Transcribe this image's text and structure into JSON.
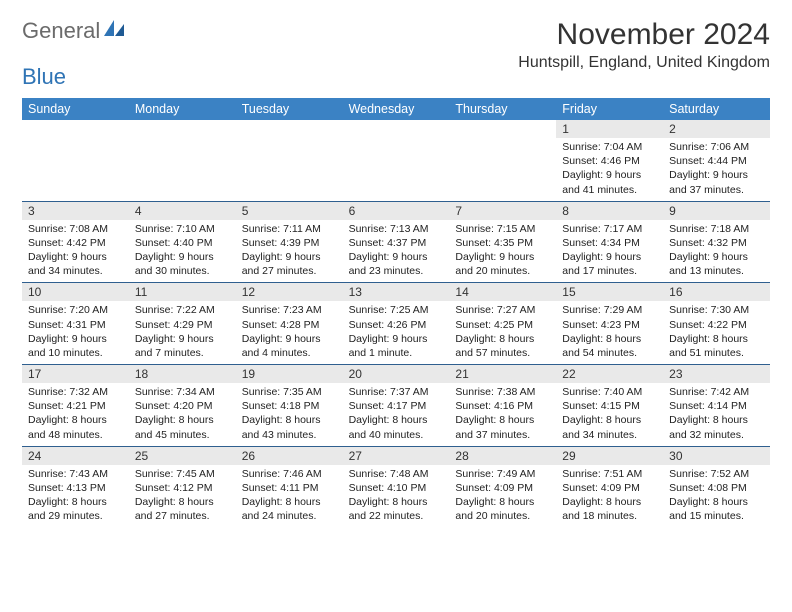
{
  "logo": {
    "part1": "General",
    "part2": "Blue"
  },
  "title": "November 2024",
  "location": "Huntspill, England, United Kingdom",
  "colors": {
    "header_bg": "#3b82c4",
    "header_text": "#ffffff",
    "daynum_bg": "#e9e9e9",
    "week_border": "#2f5f8f",
    "logo_gray": "#6b6b6b",
    "logo_blue": "#2f74b5"
  },
  "day_names": [
    "Sunday",
    "Monday",
    "Tuesday",
    "Wednesday",
    "Thursday",
    "Friday",
    "Saturday"
  ],
  "weeks": [
    [
      {
        "empty": true
      },
      {
        "empty": true
      },
      {
        "empty": true
      },
      {
        "empty": true
      },
      {
        "empty": true
      },
      {
        "day": "1",
        "sunrise": "Sunrise: 7:04 AM",
        "sunset": "Sunset: 4:46 PM",
        "daylight1": "Daylight: 9 hours",
        "daylight2": "and 41 minutes."
      },
      {
        "day": "2",
        "sunrise": "Sunrise: 7:06 AM",
        "sunset": "Sunset: 4:44 PM",
        "daylight1": "Daylight: 9 hours",
        "daylight2": "and 37 minutes."
      }
    ],
    [
      {
        "day": "3",
        "sunrise": "Sunrise: 7:08 AM",
        "sunset": "Sunset: 4:42 PM",
        "daylight1": "Daylight: 9 hours",
        "daylight2": "and 34 minutes."
      },
      {
        "day": "4",
        "sunrise": "Sunrise: 7:10 AM",
        "sunset": "Sunset: 4:40 PM",
        "daylight1": "Daylight: 9 hours",
        "daylight2": "and 30 minutes."
      },
      {
        "day": "5",
        "sunrise": "Sunrise: 7:11 AM",
        "sunset": "Sunset: 4:39 PM",
        "daylight1": "Daylight: 9 hours",
        "daylight2": "and 27 minutes."
      },
      {
        "day": "6",
        "sunrise": "Sunrise: 7:13 AM",
        "sunset": "Sunset: 4:37 PM",
        "daylight1": "Daylight: 9 hours",
        "daylight2": "and 23 minutes."
      },
      {
        "day": "7",
        "sunrise": "Sunrise: 7:15 AM",
        "sunset": "Sunset: 4:35 PM",
        "daylight1": "Daylight: 9 hours",
        "daylight2": "and 20 minutes."
      },
      {
        "day": "8",
        "sunrise": "Sunrise: 7:17 AM",
        "sunset": "Sunset: 4:34 PM",
        "daylight1": "Daylight: 9 hours",
        "daylight2": "and 17 minutes."
      },
      {
        "day": "9",
        "sunrise": "Sunrise: 7:18 AM",
        "sunset": "Sunset: 4:32 PM",
        "daylight1": "Daylight: 9 hours",
        "daylight2": "and 13 minutes."
      }
    ],
    [
      {
        "day": "10",
        "sunrise": "Sunrise: 7:20 AM",
        "sunset": "Sunset: 4:31 PM",
        "daylight1": "Daylight: 9 hours",
        "daylight2": "and 10 minutes."
      },
      {
        "day": "11",
        "sunrise": "Sunrise: 7:22 AM",
        "sunset": "Sunset: 4:29 PM",
        "daylight1": "Daylight: 9 hours",
        "daylight2": "and 7 minutes."
      },
      {
        "day": "12",
        "sunrise": "Sunrise: 7:23 AM",
        "sunset": "Sunset: 4:28 PM",
        "daylight1": "Daylight: 9 hours",
        "daylight2": "and 4 minutes."
      },
      {
        "day": "13",
        "sunrise": "Sunrise: 7:25 AM",
        "sunset": "Sunset: 4:26 PM",
        "daylight1": "Daylight: 9 hours",
        "daylight2": "and 1 minute."
      },
      {
        "day": "14",
        "sunrise": "Sunrise: 7:27 AM",
        "sunset": "Sunset: 4:25 PM",
        "daylight1": "Daylight: 8 hours",
        "daylight2": "and 57 minutes."
      },
      {
        "day": "15",
        "sunrise": "Sunrise: 7:29 AM",
        "sunset": "Sunset: 4:23 PM",
        "daylight1": "Daylight: 8 hours",
        "daylight2": "and 54 minutes."
      },
      {
        "day": "16",
        "sunrise": "Sunrise: 7:30 AM",
        "sunset": "Sunset: 4:22 PM",
        "daylight1": "Daylight: 8 hours",
        "daylight2": "and 51 minutes."
      }
    ],
    [
      {
        "day": "17",
        "sunrise": "Sunrise: 7:32 AM",
        "sunset": "Sunset: 4:21 PM",
        "daylight1": "Daylight: 8 hours",
        "daylight2": "and 48 minutes."
      },
      {
        "day": "18",
        "sunrise": "Sunrise: 7:34 AM",
        "sunset": "Sunset: 4:20 PM",
        "daylight1": "Daylight: 8 hours",
        "daylight2": "and 45 minutes."
      },
      {
        "day": "19",
        "sunrise": "Sunrise: 7:35 AM",
        "sunset": "Sunset: 4:18 PM",
        "daylight1": "Daylight: 8 hours",
        "daylight2": "and 43 minutes."
      },
      {
        "day": "20",
        "sunrise": "Sunrise: 7:37 AM",
        "sunset": "Sunset: 4:17 PM",
        "daylight1": "Daylight: 8 hours",
        "daylight2": "and 40 minutes."
      },
      {
        "day": "21",
        "sunrise": "Sunrise: 7:38 AM",
        "sunset": "Sunset: 4:16 PM",
        "daylight1": "Daylight: 8 hours",
        "daylight2": "and 37 minutes."
      },
      {
        "day": "22",
        "sunrise": "Sunrise: 7:40 AM",
        "sunset": "Sunset: 4:15 PM",
        "daylight1": "Daylight: 8 hours",
        "daylight2": "and 34 minutes."
      },
      {
        "day": "23",
        "sunrise": "Sunrise: 7:42 AM",
        "sunset": "Sunset: 4:14 PM",
        "daylight1": "Daylight: 8 hours",
        "daylight2": "and 32 minutes."
      }
    ],
    [
      {
        "day": "24",
        "sunrise": "Sunrise: 7:43 AM",
        "sunset": "Sunset: 4:13 PM",
        "daylight1": "Daylight: 8 hours",
        "daylight2": "and 29 minutes."
      },
      {
        "day": "25",
        "sunrise": "Sunrise: 7:45 AM",
        "sunset": "Sunset: 4:12 PM",
        "daylight1": "Daylight: 8 hours",
        "daylight2": "and 27 minutes."
      },
      {
        "day": "26",
        "sunrise": "Sunrise: 7:46 AM",
        "sunset": "Sunset: 4:11 PM",
        "daylight1": "Daylight: 8 hours",
        "daylight2": "and 24 minutes."
      },
      {
        "day": "27",
        "sunrise": "Sunrise: 7:48 AM",
        "sunset": "Sunset: 4:10 PM",
        "daylight1": "Daylight: 8 hours",
        "daylight2": "and 22 minutes."
      },
      {
        "day": "28",
        "sunrise": "Sunrise: 7:49 AM",
        "sunset": "Sunset: 4:09 PM",
        "daylight1": "Daylight: 8 hours",
        "daylight2": "and 20 minutes."
      },
      {
        "day": "29",
        "sunrise": "Sunrise: 7:51 AM",
        "sunset": "Sunset: 4:09 PM",
        "daylight1": "Daylight: 8 hours",
        "daylight2": "and 18 minutes."
      },
      {
        "day": "30",
        "sunrise": "Sunrise: 7:52 AM",
        "sunset": "Sunset: 4:08 PM",
        "daylight1": "Daylight: 8 hours",
        "daylight2": "and 15 minutes."
      }
    ]
  ]
}
